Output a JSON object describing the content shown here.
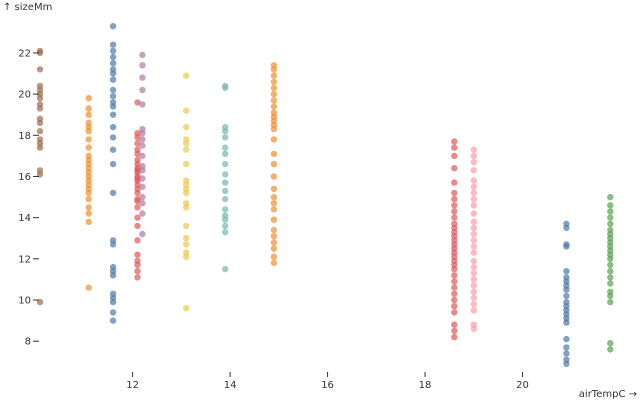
{
  "chart_data": {
    "type": "scatter",
    "title": "",
    "xlabel": "airTempC →",
    "ylabel": "↑ sizeMm",
    "xlim": [
      10.1,
      22.0
    ],
    "ylim": [
      6.6,
      23.6
    ],
    "xticks": [
      12,
      14,
      16,
      18,
      20
    ],
    "yticks": [
      8,
      10,
      12,
      14,
      16,
      18,
      20,
      22
    ],
    "grid": false,
    "legend": "none",
    "series": [
      {
        "color": "#9c6b4e",
        "x": 10.1,
        "y": [
          22.1,
          22.0,
          21.2,
          20.4,
          20.2,
          20.0,
          19.8,
          19.5,
          19.3,
          18.8,
          18.6,
          18.2,
          17.8,
          17.6,
          17.4,
          16.3,
          16.1,
          9.9
        ]
      },
      {
        "color": "#f28e2b",
        "x": 11.1,
        "y": [
          19.8,
          19.3,
          19.0,
          18.6,
          18.4,
          18.2,
          17.8,
          17.4,
          17.0,
          16.8,
          16.6,
          16.4,
          16.2,
          16.0,
          15.8,
          15.6,
          15.4,
          15.2,
          14.9,
          14.5,
          14.2,
          13.8,
          10.6
        ]
      },
      {
        "color": "#4e79a7",
        "x": 11.6,
        "y": [
          23.3,
          22.4,
          22.1,
          21.8,
          21.5,
          21.2,
          21.0,
          20.7,
          20.2,
          19.9,
          19.6,
          19.4,
          19.0,
          18.4,
          17.9,
          17.3,
          16.6,
          15.2,
          12.9,
          12.7,
          11.6,
          11.4,
          11.2,
          10.3,
          10.1,
          9.9,
          9.4,
          9.0
        ]
      },
      {
        "color": "#e15759",
        "x": 12.1,
        "y": [
          19.6,
          18.1,
          17.9,
          17.6,
          17.3,
          17.1,
          16.8,
          16.6,
          16.4,
          16.3,
          16.2,
          16.0,
          15.9,
          15.8,
          15.6,
          15.4,
          15.2,
          14.9,
          14.8,
          14.5,
          14.0,
          13.6,
          12.9,
          12.2,
          11.9,
          11.7,
          11.4,
          11.1
        ]
      },
      {
        "color": "#b07aa1",
        "x": 12.2,
        "y": [
          21.9,
          21.4,
          20.8,
          20.2,
          19.5,
          18.3,
          18.1,
          17.8,
          17.5,
          17.0,
          16.5,
          16.3,
          15.9,
          15.5,
          15.0,
          14.7,
          14.2,
          13.2
        ]
      },
      {
        "color": "#edc948",
        "x": 13.1,
        "y": [
          20.9,
          19.2,
          18.4,
          17.8,
          17.6,
          17.3,
          16.6,
          15.8,
          15.6,
          15.4,
          15.2,
          14.7,
          14.5,
          13.6,
          13.0,
          12.7,
          12.3,
          12.1,
          9.6
        ]
      },
      {
        "color": "#76b7b2",
        "x": 13.9,
        "y": [
          20.4,
          20.3,
          18.4,
          18.2,
          17.9,
          17.4,
          17.1,
          16.6,
          16.1,
          15.7,
          15.3,
          14.9,
          14.4,
          14.1,
          13.9,
          13.6,
          13.3,
          11.5
        ]
      },
      {
        "color": "#f28e2b",
        "x": 14.9,
        "y": [
          21.4,
          21.2,
          20.9,
          20.6,
          20.3,
          20.0,
          19.7,
          19.4,
          19.1,
          18.9,
          18.7,
          18.5,
          18.3,
          17.8,
          17.1,
          16.6,
          16.0,
          15.4,
          15.0,
          14.7,
          14.4,
          13.9,
          13.4,
          13.1,
          12.8,
          12.5,
          12.1,
          11.8
        ]
      },
      {
        "color": "#e15759",
        "x": 18.6,
        "y": [
          17.7,
          17.4,
          17.0,
          16.4,
          15.7,
          15.2,
          14.9,
          14.6,
          14.3,
          14.0,
          13.7,
          13.5,
          13.3,
          13.1,
          12.9,
          12.7,
          12.5,
          12.3,
          12.1,
          11.9,
          11.7,
          11.5,
          11.2,
          10.9,
          10.6,
          10.3,
          10.0,
          9.7,
          9.4,
          8.8,
          8.5,
          8.2
        ]
      },
      {
        "color": "#ff9da7",
        "x": 19.0,
        "y": [
          17.3,
          17.0,
          16.7,
          16.3,
          15.8,
          15.5,
          15.2,
          14.9,
          14.6,
          14.2,
          13.8,
          13.5,
          13.2,
          12.9,
          12.6,
          12.3,
          11.9,
          11.6,
          11.3,
          11.0,
          10.7,
          10.4,
          10.1,
          9.8,
          9.5,
          8.8,
          8.6
        ]
      },
      {
        "color": "#4e79a7",
        "x": 20.9,
        "y": [
          13.7,
          13.5,
          12.7,
          12.6,
          11.4,
          11.1,
          10.9,
          10.7,
          10.5,
          10.2,
          9.9,
          9.7,
          9.5,
          9.3,
          9.1,
          8.9,
          8.1,
          7.7,
          7.4,
          7.1,
          6.9
        ]
      },
      {
        "color": "#59a14f",
        "x": 21.8,
        "y": [
          15.0,
          14.6,
          14.3,
          14.0,
          13.7,
          13.4,
          13.2,
          13.0,
          12.8,
          12.6,
          12.4,
          12.2,
          12.0,
          11.7,
          11.4,
          11.1,
          10.8,
          10.4,
          10.2,
          9.9,
          7.9,
          7.6
        ]
      }
    ]
  }
}
